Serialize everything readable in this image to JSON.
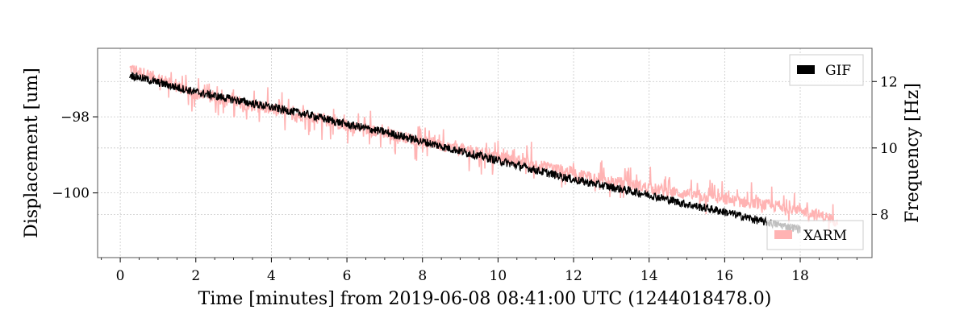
{
  "chart_data": {
    "type": "line",
    "xlabel": "Time [minutes] from 2019-06-08 08:41:00 UTC (1244018478.0)",
    "ylabel_left": "Displacement [um]",
    "ylabel_right": "Frequency [Hz]",
    "xlim": [
      -0.6,
      19.9
    ],
    "ylim_left": [
      -101.7,
      -96.2
    ],
    "ylim_right": [
      6.7,
      13.0
    ],
    "x_ticks": [
      0,
      2,
      4,
      6,
      8,
      10,
      12,
      14,
      16,
      18
    ],
    "x_tick_labels": [
      "0",
      "2",
      "4",
      "6",
      "8",
      "10",
      "12",
      "14",
      "16",
      "18"
    ],
    "y_ticks_left": [
      -98,
      -100
    ],
    "y_tick_labels_left": [
      "−98",
      "−100"
    ],
    "y_ticks_right": [
      8,
      10,
      12
    ],
    "y_tick_labels_right": [
      "8",
      "10",
      "12"
    ],
    "grid": true,
    "series": [
      {
        "name": "XARM",
        "axis": "right",
        "color": "#ffb3b3",
        "x": [
          0.25,
          1,
          2,
          3,
          4,
          5,
          6,
          7,
          8,
          9,
          10,
          11,
          12,
          13,
          14,
          15,
          16,
          17,
          18,
          19
        ],
        "values": [
          12.4,
          12.1,
          11.6,
          11.4,
          11.15,
          10.95,
          10.65,
          10.45,
          10.2,
          9.95,
          9.7,
          9.5,
          9.25,
          9.0,
          8.8,
          8.6,
          8.45,
          8.3,
          8.15,
          7.8
        ]
      },
      {
        "name": "GIF",
        "axis": "left",
        "color": "#000000",
        "x": [
          0.25,
          1,
          2,
          3,
          4,
          5,
          6,
          7,
          8,
          9,
          10,
          11,
          12,
          13,
          14,
          15,
          16,
          17,
          18
        ],
        "values": [
          -96.9,
          -97.1,
          -97.35,
          -97.55,
          -97.75,
          -97.95,
          -98.2,
          -98.4,
          -98.65,
          -98.9,
          -99.15,
          -99.4,
          -99.65,
          -99.85,
          -100.05,
          -100.3,
          -100.5,
          -100.75,
          -100.95
        ]
      }
    ],
    "legends": [
      {
        "label": "GIF",
        "placement": "top-right"
      },
      {
        "label": "XARM",
        "placement": "bottom-right"
      }
    ]
  }
}
